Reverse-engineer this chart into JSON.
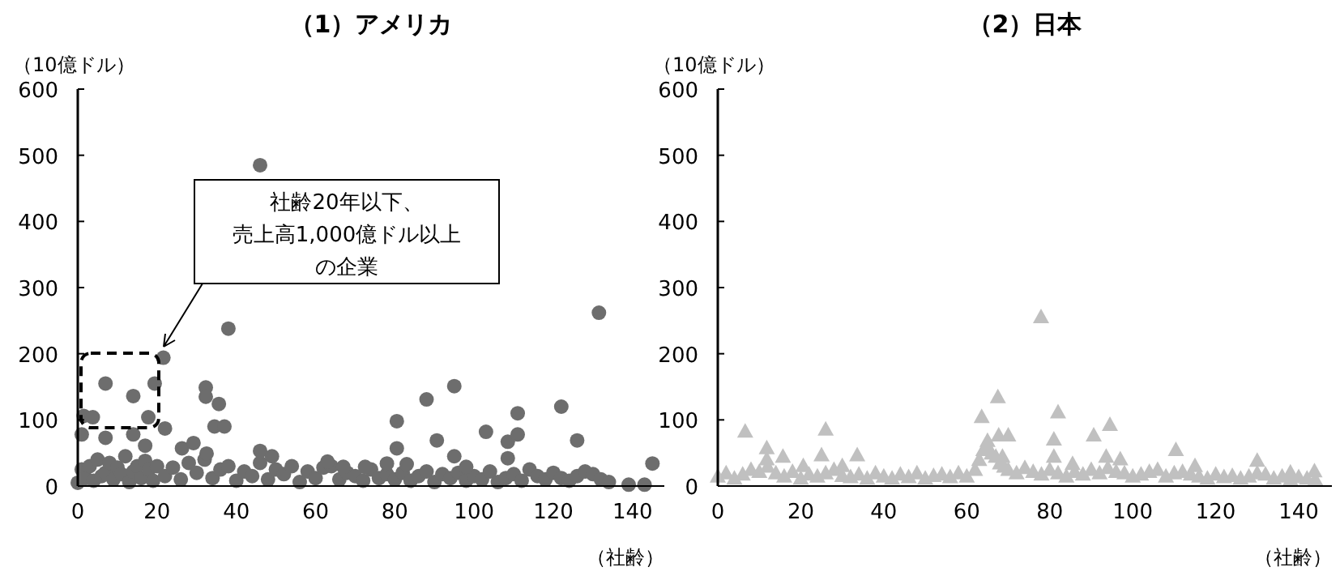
{
  "chart_data": [
    {
      "type": "scatter",
      "title": "（1）アメリカ",
      "ylabel": "（10億ドル）",
      "xlabel": "（社齢）",
      "marker": "circle",
      "xlim": [
        0,
        148
      ],
      "ylim": [
        0,
        600
      ],
      "xticks": [
        0,
        20,
        40,
        60,
        80,
        100,
        120,
        140
      ],
      "yticks": [
        0,
        100,
        200,
        300,
        400,
        500,
        600
      ],
      "annotations": [
        "社齢20年以下、売上高1,000億ドル以上の企業"
      ],
      "series": [
        {
          "color": "#6d6d6d",
          "x": [
            46,
            38,
            131.5,
            21.6,
            7,
            14,
            19.4,
            1.5,
            3.8,
            17.8,
            1,
            7,
            14,
            22,
            32.3,
            32.3,
            35.6,
            34.5,
            37,
            26.3,
            29.2,
            32.5,
            17,
            46,
            49,
            63,
            67,
            72.5,
            88,
            95,
            80.5,
            80.5,
            78,
            90.6,
            95,
            103,
            111,
            108.5,
            108.5,
            111,
            122,
            126,
            145,
            139,
            143,
            98,
            83
          ],
          "values": [
            485,
            238,
            262,
            194,
            155,
            136,
            155,
            106,
            104,
            104,
            78,
            73,
            78,
            87,
            149,
            135,
            124,
            90,
            90,
            57,
            65,
            49,
            61,
            53,
            45,
            37,
            29,
            29,
            131,
            151,
            98,
            57,
            34,
            69,
            45,
            82,
            110,
            67,
            42,
            78,
            120,
            69,
            34,
            2,
            2,
            29,
            33
          ]
        },
        {
          "color": "#6d6d6d",
          "x": [
            0,
            1,
            2,
            3,
            4,
            5,
            6,
            7,
            8,
            9,
            10,
            11,
            12,
            13,
            14,
            15,
            16,
            17,
            18,
            19,
            20,
            22,
            24,
            26,
            28,
            30,
            32,
            34,
            36,
            38,
            40,
            42,
            44,
            46,
            48,
            50,
            52,
            54,
            56,
            58,
            60,
            62,
            64,
            66,
            68,
            70,
            72,
            74,
            76,
            78,
            80,
            82,
            84,
            86,
            88,
            90,
            92,
            94,
            96,
            98,
            100,
            102,
            104,
            106,
            108,
            110,
            112,
            114,
            116,
            118,
            120,
            122,
            124,
            126,
            128,
            130,
            132,
            134
          ],
          "values": [
            5,
            25,
            12,
            30,
            8,
            40,
            15,
            20,
            35,
            10,
            28,
            18,
            45,
            6,
            22,
            30,
            12,
            38,
            25,
            8,
            30,
            15,
            28,
            10,
            35,
            20,
            40,
            12,
            25,
            30,
            8,
            22,
            15,
            35,
            10,
            25,
            18,
            30,
            6,
            22,
            12,
            28,
            30,
            10,
            20,
            15,
            8,
            25,
            12,
            18,
            10,
            20,
            8,
            15,
            22,
            6,
            18,
            12,
            20,
            8,
            15,
            10,
            22,
            6,
            12,
            18,
            8,
            25,
            15,
            10,
            20,
            12,
            8,
            15,
            22,
            18,
            10,
            6
          ]
        }
      ]
    },
    {
      "type": "scatter",
      "title": "（2）日本",
      "ylabel": "（10億ドル）",
      "xlabel": "（社齢）",
      "marker": "triangle",
      "xlim": [
        0,
        148
      ],
      "ylim": [
        0,
        600
      ],
      "xticks": [
        0,
        20,
        40,
        60,
        80,
        100,
        120,
        140
      ],
      "yticks": [
        0,
        100,
        200,
        300,
        400,
        500,
        600
      ],
      "series": [
        {
          "color": "#c0c0c0",
          "x": [
            6.6,
            11.8,
            11.8,
            15.7,
            26,
            25,
            33.6,
            20.6,
            30,
            63.6,
            67.5,
            65,
            67.7,
            70,
            68.6,
            82,
            81,
            81,
            85.5,
            90.6,
            94.5,
            93.6,
            97,
            110.4,
            115,
            130,
            143.8,
            138,
            77.9
          ],
          "values": [
            83,
            58,
            41,
            45,
            86,
            47,
            47,
            31,
            31,
            105,
            135,
            69,
            77,
            77,
            45,
            112,
            71,
            45,
            34,
            77,
            93,
            45,
            41,
            55,
            31,
            39,
            23,
            21,
            256
          ]
        },
        {
          "color": "#c0c0c0",
          "x": [
            0,
            2,
            4,
            6,
            8,
            10,
            12,
            14,
            16,
            18,
            20,
            22,
            24,
            26,
            28,
            30,
            32,
            34,
            36,
            38,
            40,
            42,
            44,
            46,
            48,
            50,
            52,
            54,
            56,
            58,
            60,
            62,
            63,
            64,
            65,
            66,
            67,
            68,
            69,
            70,
            72,
            74,
            76,
            78,
            80,
            82,
            84,
            86,
            88,
            90,
            92,
            94,
            96,
            98,
            100,
            102,
            104,
            106,
            108,
            110,
            112,
            114,
            116,
            118,
            120,
            122,
            124,
            126,
            128,
            130,
            132,
            134,
            136,
            138,
            140,
            142,
            144
          ],
          "values": [
            15,
            20,
            12,
            18,
            25,
            22,
            30,
            20,
            15,
            22,
            12,
            18,
            15,
            20,
            25,
            16,
            14,
            18,
            12,
            20,
            15,
            12,
            18,
            14,
            20,
            12,
            16,
            18,
            14,
            20,
            15,
            25,
            40,
            55,
            60,
            50,
            45,
            35,
            30,
            25,
            20,
            28,
            22,
            18,
            25,
            20,
            15,
            22,
            18,
            25,
            20,
            28,
            22,
            20,
            15,
            18,
            22,
            25,
            15,
            20,
            22,
            18,
            15,
            12,
            18,
            14,
            16,
            12,
            15,
            20,
            18,
            12,
            15,
            10,
            14,
            12,
            10
          ]
        }
      ]
    }
  ]
}
